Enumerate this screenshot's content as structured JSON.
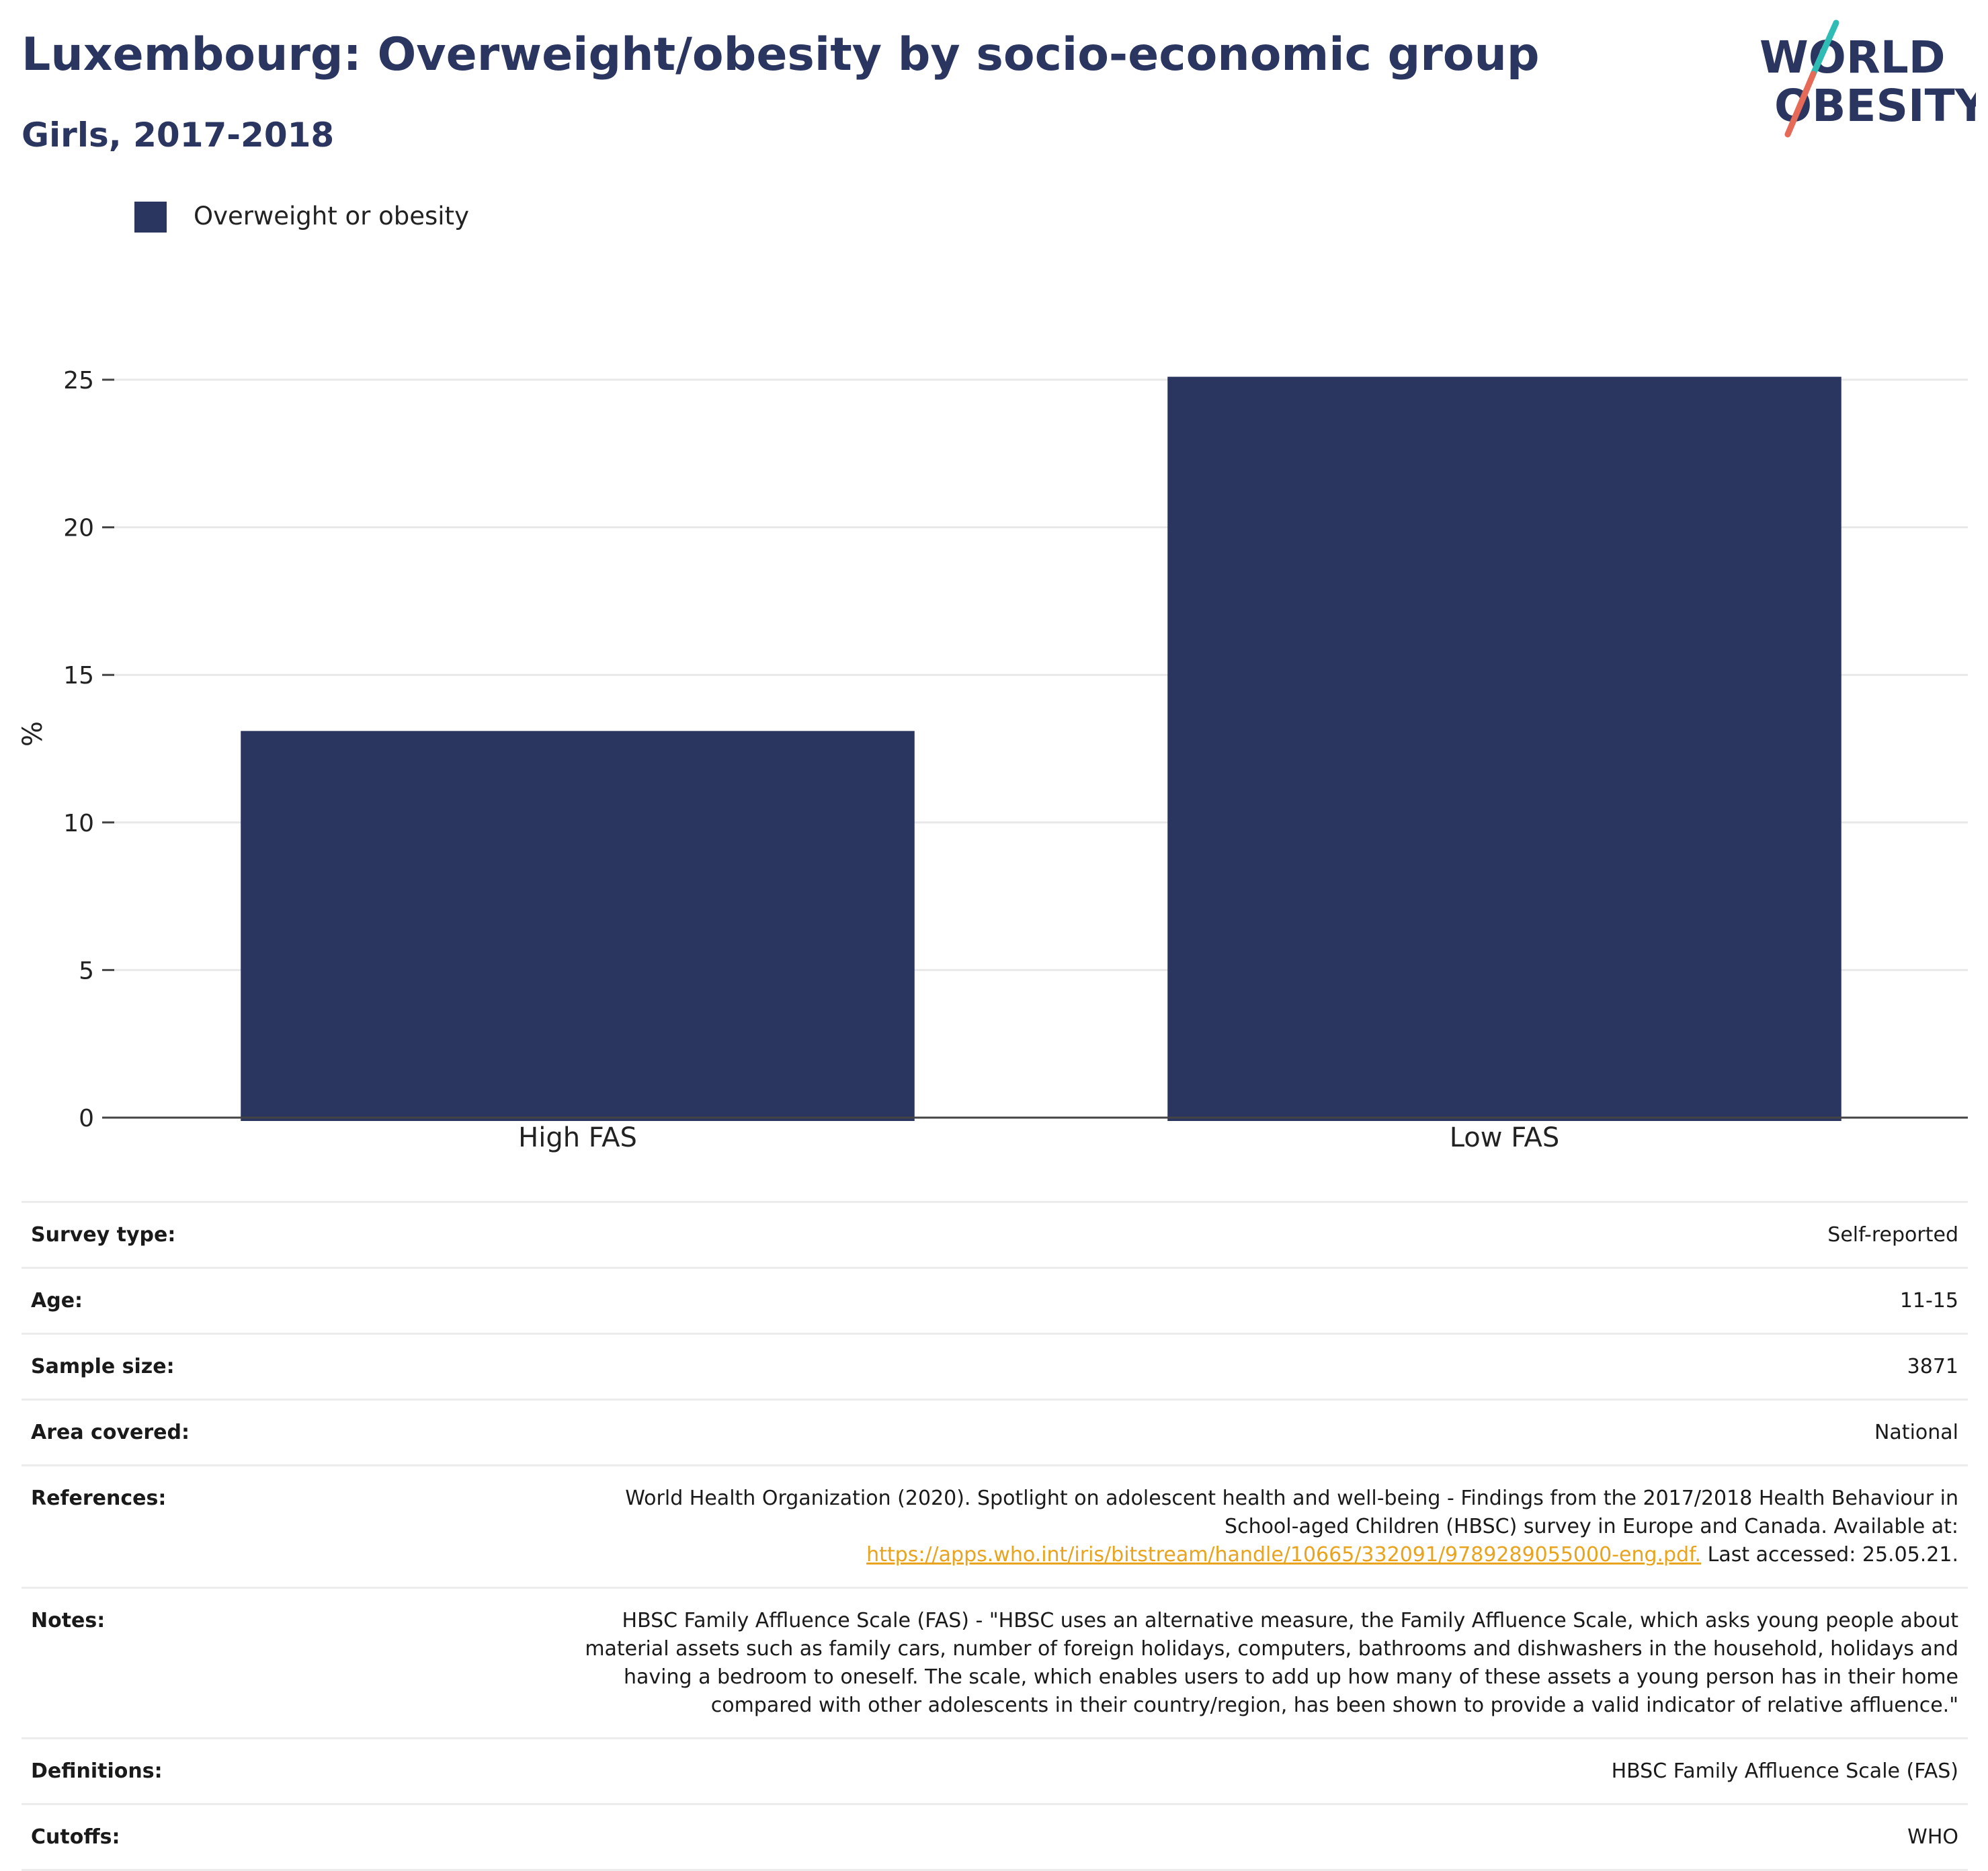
{
  "header": {
    "title": "Luxembourg: Overweight/obesity by socio-economic group",
    "subtitle": "Girls, 2017-2018"
  },
  "logo": {
    "line1": "WORLD",
    "line2": "OBESITY",
    "colors": {
      "text": "#2a3660",
      "slash_top": "#2ebcb5",
      "slash_bottom": "#e56a57"
    }
  },
  "legend": {
    "label": "Overweight or obesity",
    "color": "#2a3660"
  },
  "chart_data": {
    "type": "bar",
    "categories": [
      "High FAS",
      "Low FAS"
    ],
    "series": [
      {
        "name": "Overweight or obesity",
        "values": [
          13.1,
          25.1
        ],
        "color": "#2a3660"
      }
    ],
    "ylabel": "%",
    "ylim": [
      0,
      27
    ],
    "yticks": [
      0,
      5,
      10,
      15,
      20,
      25
    ],
    "grid": true,
    "legend_position": "top-left"
  },
  "metadata": [
    {
      "key": "Survey type:",
      "value": "Self-reported"
    },
    {
      "key": "Age:",
      "value": "11-15"
    },
    {
      "key": "Sample size:",
      "value": "3871"
    },
    {
      "key": "Area covered:",
      "value": "National"
    },
    {
      "key": "References:",
      "value_line1": "World Health Organization (2020). Spotlight on adolescent health and well-being - Findings from the 2017/2018 Health Behaviour in",
      "value_line2": "School-aged Children (HBSC) survey in Europe and Canada. Available at:",
      "link": "https://apps.who.int/iris/bitstream/handle/10665/332091/9789289055000-eng.pdf.",
      "value_tail": " Last accessed: 25.05.21."
    },
    {
      "key": "Notes:",
      "lines": [
        "HBSC Family Affluence Scale (FAS) - \"HBSC uses an alternative measure, the Family Affluence Scale, which asks young people about",
        "material assets such as family cars, number of foreign holidays, computers, bathrooms and dishwashers in the household, holidays and",
        "having a bedroom to oneself. The scale, which enables users to add up how many of these assets a young person has in their home",
        "compared with other adolescents in their country/region, has been shown to provide a valid indicator of relative affluence.\""
      ]
    },
    {
      "key": "Definitions:",
      "value": "HBSC Family Affluence Scale (FAS)"
    },
    {
      "key": "Cutoffs:",
      "value": "WHO"
    }
  ]
}
